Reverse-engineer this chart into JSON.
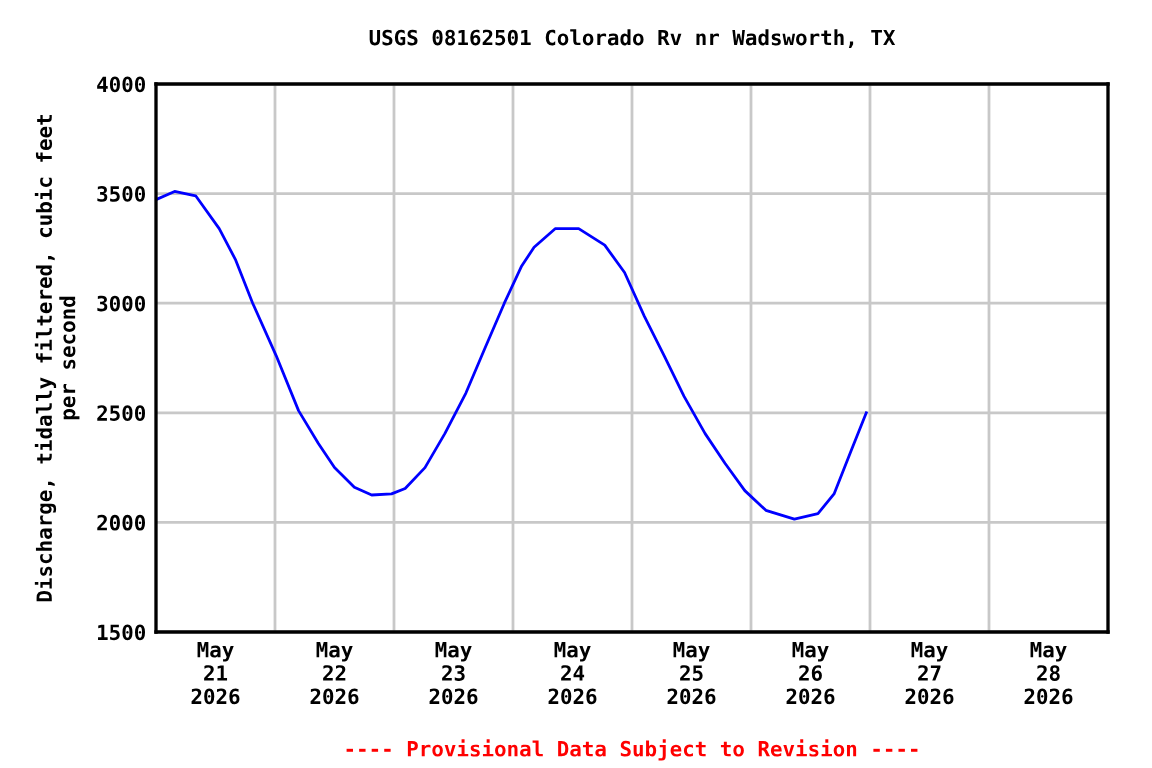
{
  "chart_data": {
    "type": "line",
    "title": "USGS 08162501 Colorado Rv nr Wadsworth, TX",
    "ylabel": "Discharge, tidally filtered, cubic feet\nper second",
    "annotations": [
      "---- Provisional Data Subject to Revision ----"
    ],
    "grid": true,
    "legend": false,
    "marker": "none",
    "line_style": "solid",
    "xlim": [
      "2026-05-21T00:00",
      "2026-05-29T00:00"
    ],
    "xticks": [
      {
        "value": "2026-05-22T00:00",
        "label": null
      },
      {
        "value": "2026-05-23T00:00",
        "label": null
      },
      {
        "value": "2026-05-24T00:00",
        "label": null
      },
      {
        "value": "2026-05-25T00:00",
        "label": null
      },
      {
        "value": "2026-05-26T00:00",
        "label": null
      },
      {
        "value": "2026-05-27T00:00",
        "label": null
      },
      {
        "value": "2026-05-28T00:00",
        "label": null
      },
      {
        "value": "2026-05-21T12:00",
        "label": "May\n21\n2026"
      },
      {
        "value": "2026-05-22T12:00",
        "label": "May\n22\n2026"
      },
      {
        "value": "2026-05-23T12:00",
        "label": "May\n23\n2026"
      },
      {
        "value": "2026-05-24T12:00",
        "label": "May\n24\n2026"
      },
      {
        "value": "2026-05-25T12:00",
        "label": "May\n25\n2026"
      },
      {
        "value": "2026-05-26T12:00",
        "label": "May\n26\n2026"
      },
      {
        "value": "2026-05-27T12:00",
        "label": "May\n27\n2026"
      },
      {
        "value": "2026-05-28T12:00",
        "label": "May\n28\n2026"
      }
    ],
    "ylim": [
      1500,
      4000
    ],
    "yticks": [
      1500,
      2000,
      2500,
      3000,
      3500,
      4000
    ],
    "series": [
      {
        "color": "#0000ff",
        "x": [
          "2026-05-21T00:15",
          "2026-05-21T03:45",
          "2026-05-21T08:00",
          "2026-05-21T12:45",
          "2026-05-21T16:00",
          "2026-05-21T19:30",
          "2026-05-22T00:15",
          "2026-05-22T04:45",
          "2026-05-22T08:45",
          "2026-05-22T12:00",
          "2026-05-22T16:00",
          "2026-05-22T19:30",
          "2026-05-22T23:30",
          "2026-05-23T02:15",
          "2026-05-23T06:15",
          "2026-05-23T10:15",
          "2026-05-23T14:30",
          "2026-05-23T18:15",
          "2026-05-23T22:15",
          "2026-05-24T01:45",
          "2026-05-24T04:15",
          "2026-05-24T08:30",
          "2026-05-24T13:15",
          "2026-05-24T18:30",
          "2026-05-24T22:30",
          "2026-05-25T02:30",
          "2026-05-25T06:30",
          "2026-05-25T10:30",
          "2026-05-25T14:45",
          "2026-05-25T18:45",
          "2026-05-25T22:45",
          "2026-05-26T03:00",
          "2026-05-26T08:45",
          "2026-05-26T13:30",
          "2026-05-26T16:45",
          "2026-05-26T20:15",
          "2026-05-26T23:15"
        ],
        "values": [
          3475,
          3510,
          3490,
          3340,
          3200,
          3000,
          2760,
          2510,
          2360,
          2250,
          2160,
          2125,
          2130,
          2155,
          2250,
          2405,
          2590,
          2790,
          3000,
          3170,
          3255,
          3340,
          3340,
          3265,
          3140,
          2940,
          2760,
          2575,
          2405,
          2270,
          2145,
          2055,
          2015,
          2040,
          2130,
          2330,
          2500
        ]
      }
    ]
  }
}
